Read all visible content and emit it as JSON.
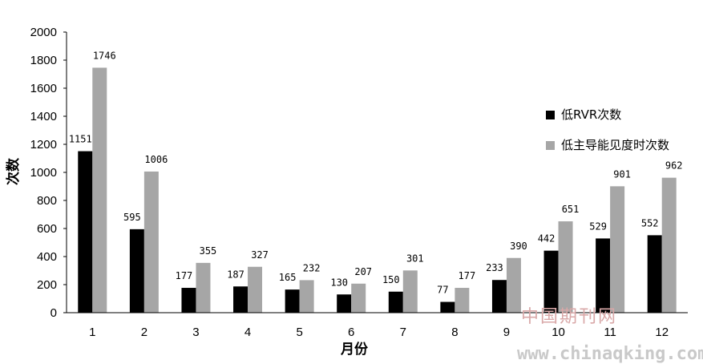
{
  "chart_data": {
    "type": "bar",
    "categories": [
      "1",
      "2",
      "3",
      "4",
      "5",
      "6",
      "7",
      "8",
      "9",
      "10",
      "11",
      "12"
    ],
    "series": [
      {
        "name": "低RVR次数",
        "color": "#000000",
        "values": [
          1151,
          595,
          177,
          187,
          165,
          130,
          150,
          77,
          233,
          442,
          529,
          552
        ]
      },
      {
        "name": "低主导能见度时次数",
        "color": "#a6a6a6",
        "values": [
          1746,
          1006,
          355,
          327,
          232,
          207,
          301,
          177,
          390,
          651,
          901,
          962
        ]
      }
    ],
    "xlabel": "月份",
    "ylabel": "次数",
    "ylim": [
      0,
      2000
    ],
    "yticks": [
      0,
      200,
      400,
      600,
      800,
      1000,
      1200,
      1400,
      1600,
      1800,
      2000
    ],
    "grid": false,
    "legend": "right"
  },
  "watermark": {
    "line1": "中国期刊网",
    "line2": "www.chinaqking.com"
  }
}
